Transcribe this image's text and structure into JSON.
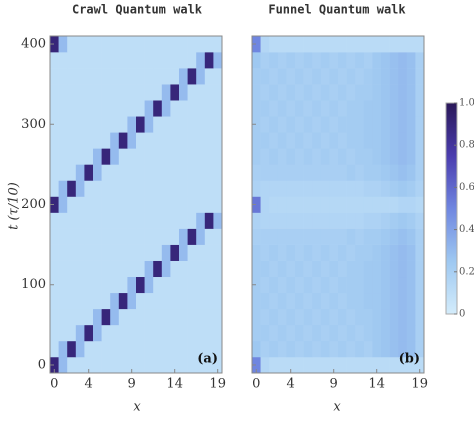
{
  "chart_data": [
    {
      "type": "heatmap",
      "title": "Crawl Quantum walk",
      "xlabel": "x",
      "ylabel": "t (τ/10)",
      "panel_label": "(a)",
      "x": [
        0,
        1,
        2,
        3,
        4,
        5,
        6,
        7,
        8,
        9,
        10,
        11,
        12,
        13,
        14,
        15,
        16,
        17,
        18,
        19
      ],
      "y": [
        0,
        20,
        40,
        60,
        80,
        100,
        120,
        140,
        160,
        180,
        200,
        220,
        240,
        260,
        280,
        300,
        320,
        340,
        360,
        380,
        400
      ],
      "xlim": [
        -0.5,
        19.5
      ],
      "ylim": [
        -10,
        410
      ],
      "xticks": [
        0,
        4,
        9,
        14,
        19
      ],
      "yticks": [
        0,
        100,
        200,
        300,
        400
      ],
      "ytick_labels": true,
      "z": [
        [
          0.9,
          0.3,
          0.1,
          0.1,
          0.1,
          0.1,
          0.1,
          0.1,
          0.1,
          0.1,
          0.1,
          0.1,
          0.1,
          0.1,
          0.1,
          0.1,
          0.1,
          0.1,
          0.1,
          0.1
        ],
        [
          0.1,
          0.3,
          0.9,
          0.3,
          0.1,
          0.1,
          0.1,
          0.1,
          0.1,
          0.1,
          0.1,
          0.1,
          0.1,
          0.1,
          0.1,
          0.1,
          0.1,
          0.1,
          0.1,
          0.1
        ],
        [
          0.1,
          0.1,
          0.1,
          0.3,
          0.9,
          0.3,
          0.1,
          0.1,
          0.1,
          0.1,
          0.1,
          0.1,
          0.1,
          0.1,
          0.1,
          0.1,
          0.1,
          0.1,
          0.1,
          0.1
        ],
        [
          0.1,
          0.1,
          0.1,
          0.1,
          0.1,
          0.3,
          0.9,
          0.3,
          0.1,
          0.1,
          0.1,
          0.1,
          0.1,
          0.1,
          0.1,
          0.1,
          0.1,
          0.1,
          0.1,
          0.1
        ],
        [
          0.1,
          0.1,
          0.1,
          0.1,
          0.1,
          0.1,
          0.1,
          0.3,
          0.9,
          0.3,
          0.1,
          0.1,
          0.1,
          0.1,
          0.1,
          0.1,
          0.1,
          0.1,
          0.1,
          0.1
        ],
        [
          0.1,
          0.1,
          0.1,
          0.1,
          0.1,
          0.1,
          0.1,
          0.1,
          0.1,
          0.3,
          0.9,
          0.3,
          0.1,
          0.1,
          0.1,
          0.1,
          0.1,
          0.1,
          0.1,
          0.1
        ],
        [
          0.1,
          0.1,
          0.1,
          0.1,
          0.1,
          0.1,
          0.1,
          0.1,
          0.1,
          0.1,
          0.1,
          0.3,
          0.9,
          0.3,
          0.1,
          0.1,
          0.1,
          0.1,
          0.1,
          0.1
        ],
        [
          0.1,
          0.1,
          0.1,
          0.1,
          0.1,
          0.1,
          0.1,
          0.1,
          0.1,
          0.1,
          0.1,
          0.1,
          0.1,
          0.3,
          0.9,
          0.3,
          0.1,
          0.1,
          0.1,
          0.1
        ],
        [
          0.1,
          0.1,
          0.1,
          0.1,
          0.1,
          0.1,
          0.1,
          0.1,
          0.1,
          0.1,
          0.1,
          0.1,
          0.1,
          0.1,
          0.1,
          0.3,
          0.9,
          0.3,
          0.1,
          0.1
        ],
        [
          0.1,
          0.1,
          0.1,
          0.1,
          0.1,
          0.1,
          0.1,
          0.1,
          0.1,
          0.1,
          0.1,
          0.1,
          0.1,
          0.1,
          0.1,
          0.1,
          0.1,
          0.3,
          0.9,
          0.3
        ],
        [
          0.9,
          0.3,
          0.1,
          0.1,
          0.1,
          0.1,
          0.1,
          0.1,
          0.1,
          0.1,
          0.1,
          0.1,
          0.1,
          0.1,
          0.1,
          0.1,
          0.1,
          0.1,
          0.1,
          0.1
        ],
        [
          0.1,
          0.3,
          0.9,
          0.3,
          0.1,
          0.1,
          0.1,
          0.1,
          0.1,
          0.1,
          0.1,
          0.1,
          0.1,
          0.1,
          0.1,
          0.1,
          0.1,
          0.1,
          0.1,
          0.1
        ],
        [
          0.1,
          0.1,
          0.1,
          0.3,
          0.9,
          0.3,
          0.1,
          0.1,
          0.1,
          0.1,
          0.1,
          0.1,
          0.1,
          0.1,
          0.1,
          0.1,
          0.1,
          0.1,
          0.1,
          0.1
        ],
        [
          0.1,
          0.1,
          0.1,
          0.1,
          0.1,
          0.3,
          0.9,
          0.3,
          0.1,
          0.1,
          0.1,
          0.1,
          0.1,
          0.1,
          0.1,
          0.1,
          0.1,
          0.1,
          0.1,
          0.1
        ],
        [
          0.1,
          0.1,
          0.1,
          0.1,
          0.1,
          0.1,
          0.1,
          0.3,
          0.9,
          0.3,
          0.1,
          0.1,
          0.1,
          0.1,
          0.1,
          0.1,
          0.1,
          0.1,
          0.1,
          0.1
        ],
        [
          0.1,
          0.1,
          0.1,
          0.1,
          0.1,
          0.1,
          0.1,
          0.1,
          0.1,
          0.3,
          0.9,
          0.3,
          0.1,
          0.1,
          0.1,
          0.1,
          0.1,
          0.1,
          0.1,
          0.1
        ],
        [
          0.1,
          0.1,
          0.1,
          0.1,
          0.1,
          0.1,
          0.1,
          0.1,
          0.1,
          0.1,
          0.1,
          0.3,
          0.9,
          0.3,
          0.1,
          0.1,
          0.1,
          0.1,
          0.1,
          0.1
        ],
        [
          0.1,
          0.1,
          0.1,
          0.1,
          0.1,
          0.1,
          0.1,
          0.1,
          0.1,
          0.1,
          0.1,
          0.1,
          0.1,
          0.3,
          0.9,
          0.3,
          0.1,
          0.1,
          0.1,
          0.1
        ],
        [
          0.1,
          0.1,
          0.1,
          0.1,
          0.1,
          0.1,
          0.1,
          0.1,
          0.1,
          0.1,
          0.1,
          0.1,
          0.1,
          0.1,
          0.1,
          0.3,
          0.9,
          0.3,
          0.1,
          0.1
        ],
        [
          0.1,
          0.1,
          0.1,
          0.1,
          0.1,
          0.1,
          0.1,
          0.1,
          0.1,
          0.1,
          0.1,
          0.1,
          0.1,
          0.1,
          0.1,
          0.1,
          0.1,
          0.3,
          0.9,
          0.3
        ],
        [
          0.9,
          0.3,
          0.1,
          0.1,
          0.1,
          0.1,
          0.1,
          0.1,
          0.1,
          0.1,
          0.1,
          0.1,
          0.1,
          0.1,
          0.1,
          0.1,
          0.1,
          0.1,
          0.1,
          0.1
        ]
      ]
    },
    {
      "type": "heatmap",
      "title": "Funnel Quantum walk",
      "xlabel": "x",
      "panel_label": "(b)",
      "x": [
        0,
        1,
        2,
        3,
        4,
        5,
        6,
        7,
        8,
        9,
        10,
        11,
        12,
        13,
        14,
        15,
        16,
        17,
        18,
        19
      ],
      "y": [
        0,
        20,
        40,
        60,
        80,
        100,
        120,
        140,
        160,
        180,
        200,
        220,
        240,
        260,
        280,
        300,
        320,
        340,
        360,
        380,
        400
      ],
      "xlim": [
        -0.5,
        19.5
      ],
      "ylim": [
        -10,
        410
      ],
      "xticks": [
        0,
        4,
        9,
        14,
        19
      ],
      "yticks": [
        0,
        100,
        200,
        300,
        400
      ],
      "ytick_labels": false,
      "z": [
        [
          0.5,
          0.15,
          0.12,
          0.12,
          0.12,
          0.12,
          0.12,
          0.12,
          0.12,
          0.12,
          0.12,
          0.12,
          0.12,
          0.12,
          0.12,
          0.12,
          0.12,
          0.12,
          0.12,
          0.12
        ],
        [
          0.25,
          0.2,
          0.22,
          0.2,
          0.22,
          0.2,
          0.22,
          0.2,
          0.22,
          0.2,
          0.22,
          0.2,
          0.22,
          0.2,
          0.24,
          0.26,
          0.28,
          0.3,
          0.28,
          0.2
        ],
        [
          0.22,
          0.22,
          0.2,
          0.22,
          0.2,
          0.22,
          0.2,
          0.22,
          0.2,
          0.22,
          0.2,
          0.22,
          0.2,
          0.22,
          0.24,
          0.26,
          0.28,
          0.3,
          0.28,
          0.2
        ],
        [
          0.22,
          0.2,
          0.22,
          0.2,
          0.22,
          0.2,
          0.22,
          0.2,
          0.22,
          0.2,
          0.22,
          0.2,
          0.22,
          0.22,
          0.24,
          0.26,
          0.28,
          0.3,
          0.28,
          0.2
        ],
        [
          0.22,
          0.22,
          0.2,
          0.22,
          0.2,
          0.22,
          0.2,
          0.22,
          0.2,
          0.22,
          0.2,
          0.22,
          0.22,
          0.24,
          0.24,
          0.26,
          0.28,
          0.3,
          0.28,
          0.2
        ],
        [
          0.22,
          0.2,
          0.22,
          0.2,
          0.22,
          0.2,
          0.22,
          0.2,
          0.22,
          0.2,
          0.22,
          0.22,
          0.22,
          0.24,
          0.24,
          0.26,
          0.28,
          0.3,
          0.28,
          0.2
        ],
        [
          0.22,
          0.22,
          0.2,
          0.22,
          0.2,
          0.22,
          0.2,
          0.22,
          0.2,
          0.22,
          0.2,
          0.22,
          0.22,
          0.24,
          0.24,
          0.26,
          0.28,
          0.3,
          0.28,
          0.2
        ],
        [
          0.22,
          0.2,
          0.22,
          0.2,
          0.22,
          0.2,
          0.22,
          0.2,
          0.22,
          0.2,
          0.22,
          0.2,
          0.22,
          0.22,
          0.24,
          0.26,
          0.28,
          0.3,
          0.28,
          0.2
        ],
        [
          0.2,
          0.2,
          0.2,
          0.2,
          0.2,
          0.2,
          0.2,
          0.2,
          0.2,
          0.2,
          0.2,
          0.22,
          0.2,
          0.22,
          0.22,
          0.24,
          0.26,
          0.28,
          0.26,
          0.2
        ],
        [
          0.18,
          0.16,
          0.16,
          0.16,
          0.16,
          0.16,
          0.16,
          0.16,
          0.16,
          0.16,
          0.16,
          0.16,
          0.16,
          0.18,
          0.18,
          0.2,
          0.22,
          0.24,
          0.22,
          0.18
        ],
        [
          0.55,
          0.16,
          0.14,
          0.14,
          0.14,
          0.14,
          0.14,
          0.14,
          0.14,
          0.14,
          0.14,
          0.14,
          0.14,
          0.14,
          0.14,
          0.14,
          0.14,
          0.16,
          0.16,
          0.14
        ],
        [
          0.18,
          0.16,
          0.16,
          0.16,
          0.16,
          0.16,
          0.16,
          0.16,
          0.16,
          0.16,
          0.16,
          0.16,
          0.16,
          0.18,
          0.18,
          0.2,
          0.22,
          0.24,
          0.22,
          0.18
        ],
        [
          0.2,
          0.2,
          0.2,
          0.2,
          0.2,
          0.2,
          0.2,
          0.2,
          0.2,
          0.2,
          0.2,
          0.22,
          0.2,
          0.22,
          0.22,
          0.24,
          0.26,
          0.28,
          0.26,
          0.2
        ],
        [
          0.22,
          0.2,
          0.22,
          0.2,
          0.22,
          0.2,
          0.22,
          0.2,
          0.22,
          0.2,
          0.22,
          0.2,
          0.22,
          0.22,
          0.24,
          0.26,
          0.28,
          0.3,
          0.28,
          0.2
        ],
        [
          0.22,
          0.22,
          0.2,
          0.22,
          0.2,
          0.22,
          0.2,
          0.22,
          0.2,
          0.22,
          0.2,
          0.22,
          0.22,
          0.24,
          0.24,
          0.26,
          0.28,
          0.3,
          0.28,
          0.2
        ],
        [
          0.22,
          0.2,
          0.22,
          0.2,
          0.22,
          0.2,
          0.22,
          0.2,
          0.22,
          0.2,
          0.22,
          0.22,
          0.22,
          0.24,
          0.24,
          0.26,
          0.28,
          0.3,
          0.28,
          0.2
        ],
        [
          0.22,
          0.22,
          0.2,
          0.22,
          0.2,
          0.22,
          0.2,
          0.22,
          0.2,
          0.22,
          0.2,
          0.22,
          0.22,
          0.24,
          0.24,
          0.26,
          0.28,
          0.3,
          0.28,
          0.2
        ],
        [
          0.22,
          0.2,
          0.22,
          0.2,
          0.22,
          0.2,
          0.22,
          0.2,
          0.22,
          0.2,
          0.22,
          0.2,
          0.22,
          0.22,
          0.24,
          0.26,
          0.28,
          0.3,
          0.28,
          0.2
        ],
        [
          0.22,
          0.22,
          0.2,
          0.22,
          0.2,
          0.22,
          0.2,
          0.22,
          0.2,
          0.22,
          0.2,
          0.22,
          0.2,
          0.22,
          0.24,
          0.26,
          0.28,
          0.3,
          0.28,
          0.2
        ],
        [
          0.25,
          0.2,
          0.22,
          0.2,
          0.22,
          0.2,
          0.22,
          0.2,
          0.22,
          0.2,
          0.22,
          0.2,
          0.22,
          0.2,
          0.24,
          0.26,
          0.28,
          0.3,
          0.28,
          0.2
        ],
        [
          0.5,
          0.15,
          0.12,
          0.12,
          0.12,
          0.12,
          0.12,
          0.12,
          0.12,
          0.12,
          0.12,
          0.12,
          0.12,
          0.12,
          0.12,
          0.12,
          0.12,
          0.12,
          0.12,
          0.12
        ]
      ]
    }
  ],
  "colorbar": {
    "ylim": [
      0,
      1
    ],
    "yticks": [
      0,
      0.2,
      0.4,
      0.6,
      0.8,
      {
        "value": 1,
        "label": "1.0"
      }
    ],
    "colors": [
      "#d3ecfb",
      "#9ec8f1",
      "#6f86e0",
      "#4a3cae",
      "#2a1858"
    ]
  }
}
